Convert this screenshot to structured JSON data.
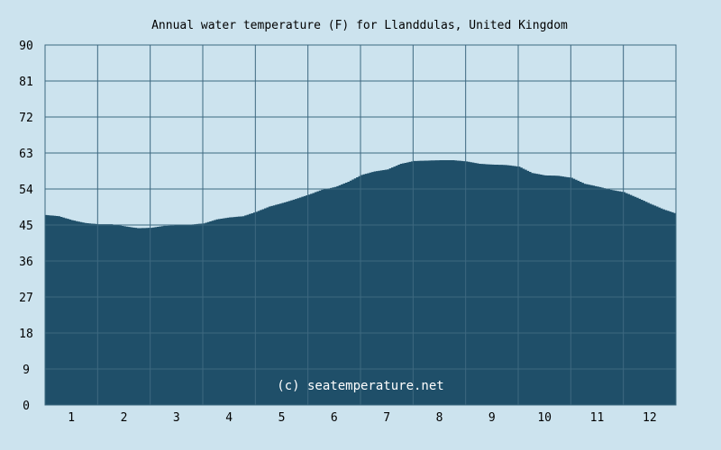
{
  "chart_data": {
    "type": "area",
    "title": "Annual water temperature (F) for Llanddulas, United Kingdom",
    "watermark": "(c) seatemperature.net",
    "xlabel": "",
    "ylabel": "",
    "x_ticks": [
      "1",
      "2",
      "3",
      "4",
      "5",
      "6",
      "7",
      "8",
      "9",
      "10",
      "11",
      "12"
    ],
    "y_ticks": [
      "0",
      "9",
      "18",
      "27",
      "36",
      "45",
      "54",
      "63",
      "72",
      "81",
      "90"
    ],
    "xlim": [
      0.5,
      12.5
    ],
    "ylim": [
      0,
      90
    ],
    "grid": true,
    "colors": {
      "background": "#cce3ee",
      "area_fill": "#1f4f69",
      "grid": "#3d6880",
      "text": "#000000",
      "watermark": "#ffffff"
    },
    "series": [
      {
        "x": [
          0.5,
          0.75,
          1.0,
          1.25,
          1.5,
          1.75,
          2.0,
          2.25,
          2.5,
          2.75,
          3.0,
          3.25,
          3.5,
          3.75,
          4.0,
          4.25,
          4.5,
          4.75,
          5.0,
          5.25,
          5.5,
          5.75,
          6.0,
          6.25,
          6.5,
          6.75,
          7.0,
          7.25,
          7.5,
          7.75,
          8.0,
          8.25,
          8.5,
          8.75,
          9.0,
          9.25,
          9.5,
          9.75,
          10.0,
          10.25,
          10.5,
          10.75,
          11.0,
          11.25,
          11.5,
          11.75,
          12.0,
          12.25,
          12.5
        ],
        "values": [
          47.5,
          47.2,
          46.2,
          45.5,
          45.2,
          45.2,
          44.7,
          44.2,
          44.3,
          44.8,
          44.9,
          45.1,
          45.4,
          46.4,
          46.9,
          47.2,
          48.3,
          49.6,
          50.5,
          51.5,
          52.6,
          53.8,
          54.5,
          55.8,
          57.5,
          58.4,
          58.9,
          60.3,
          61.0,
          61.1,
          61.2,
          61.2,
          60.9,
          60.3,
          60.1,
          60.0,
          59.6,
          58.0,
          57.4,
          57.3,
          56.8,
          55.3,
          54.6,
          53.8,
          53.2,
          51.8,
          50.3,
          48.9,
          47.8
        ]
      }
    ]
  }
}
